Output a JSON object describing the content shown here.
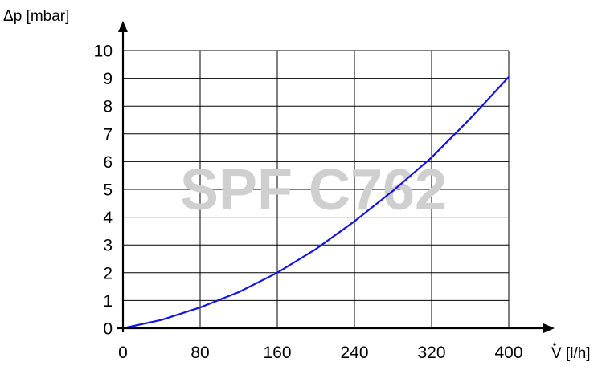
{
  "chart_data": {
    "type": "line",
    "ylabel": "Δp [mbar]",
    "xlabel": "V [l/h]",
    "xlim": [
      0,
      400
    ],
    "ylim": [
      0,
      10
    ],
    "x_ticks": [
      "0",
      "80",
      "160",
      "240",
      "320",
      "400"
    ],
    "y_ticks": [
      "0",
      "1",
      "2",
      "3",
      "4",
      "5",
      "6",
      "7",
      "8",
      "9",
      "10"
    ],
    "grid": true,
    "watermark": "SPF C762",
    "series": [
      {
        "color": "#1414e6",
        "x": [
          0,
          40,
          80,
          120,
          160,
          200,
          240,
          280,
          320,
          360,
          400
        ],
        "y": [
          0,
          0.3,
          0.75,
          1.3,
          2.0,
          2.85,
          3.85,
          4.95,
          6.15,
          7.55,
          9.05
        ]
      }
    ]
  }
}
